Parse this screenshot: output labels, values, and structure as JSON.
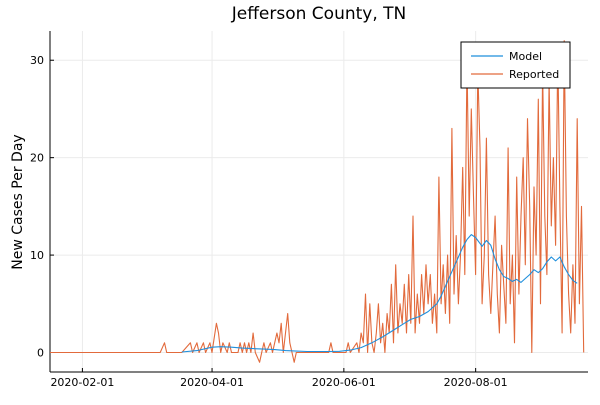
{
  "chart_data": {
    "type": "line",
    "title": "Jefferson County, TN",
    "xlabel": "",
    "ylabel": "New Cases Per Day",
    "x_axis": {
      "type": "date",
      "range": [
        "2020-01-17",
        "2020-09-22"
      ],
      "ticks": [
        "2020-02-01",
        "2020-04-01",
        "2020-06-01",
        "2020-08-01"
      ]
    },
    "y_axis": {
      "range": [
        -2,
        33
      ],
      "ticks": [
        0,
        10,
        20,
        30
      ]
    },
    "grid": true,
    "legend": {
      "placement": "top-right"
    },
    "series": [
      {
        "name": "Model",
        "color": "#1f8fdc",
        "points": [
          [
            "2020-03-18",
            0.05
          ],
          [
            "2020-03-25",
            0.2
          ],
          [
            "2020-04-01",
            0.55
          ],
          [
            "2020-04-05",
            0.6
          ],
          [
            "2020-04-10",
            0.55
          ],
          [
            "2020-04-15",
            0.45
          ],
          [
            "2020-04-20",
            0.4
          ],
          [
            "2020-04-25",
            0.35
          ],
          [
            "2020-04-30",
            0.3
          ],
          [
            "2020-05-05",
            0.2
          ],
          [
            "2020-05-10",
            0.15
          ],
          [
            "2020-05-15",
            0.1
          ],
          [
            "2020-05-20",
            0.1
          ],
          [
            "2020-05-25",
            0.1
          ],
          [
            "2020-05-30",
            0.12
          ],
          [
            "2020-06-04",
            0.25
          ],
          [
            "2020-06-09",
            0.5
          ],
          [
            "2020-06-14",
            1.0
          ],
          [
            "2020-06-19",
            1.6
          ],
          [
            "2020-06-24",
            2.3
          ],
          [
            "2020-06-29",
            3.0
          ],
          [
            "2020-07-02",
            3.4
          ],
          [
            "2020-07-06",
            3.7
          ],
          [
            "2020-07-10",
            4.2
          ],
          [
            "2020-07-14",
            5.0
          ],
          [
            "2020-07-16",
            5.8
          ],
          [
            "2020-07-18",
            6.8
          ],
          [
            "2020-07-20",
            7.8
          ],
          [
            "2020-07-22",
            8.8
          ],
          [
            "2020-07-24",
            9.8
          ],
          [
            "2020-07-26",
            10.8
          ],
          [
            "2020-07-28",
            11.6
          ],
          [
            "2020-07-30",
            12.1
          ],
          [
            "2020-08-01",
            11.8
          ],
          [
            "2020-08-03",
            11.2
          ],
          [
            "2020-08-04",
            10.9
          ],
          [
            "2020-08-06",
            11.5
          ],
          [
            "2020-08-08",
            11.0
          ],
          [
            "2020-08-10",
            9.6
          ],
          [
            "2020-08-12",
            8.5
          ],
          [
            "2020-08-14",
            7.8
          ],
          [
            "2020-08-16",
            7.6
          ],
          [
            "2020-08-18",
            7.3
          ],
          [
            "2020-08-20",
            7.5
          ],
          [
            "2020-08-22",
            7.2
          ],
          [
            "2020-08-24",
            7.6
          ],
          [
            "2020-08-26",
            8.0
          ],
          [
            "2020-08-28",
            8.5
          ],
          [
            "2020-08-30",
            8.2
          ],
          [
            "2020-09-01",
            8.6
          ],
          [
            "2020-09-03",
            9.3
          ],
          [
            "2020-09-05",
            9.8
          ],
          [
            "2020-09-07",
            9.4
          ],
          [
            "2020-09-09",
            9.8
          ],
          [
            "2020-09-11",
            8.8
          ],
          [
            "2020-09-13",
            8.0
          ],
          [
            "2020-09-15",
            7.4
          ],
          [
            "2020-09-17",
            7.1
          ]
        ]
      },
      {
        "name": "Reported",
        "color": "#e26a3c",
        "points": [
          [
            "2020-01-17",
            0
          ],
          [
            "2020-03-08",
            0
          ],
          [
            "2020-03-10",
            1
          ],
          [
            "2020-03-11",
            0
          ],
          [
            "2020-03-18",
            0
          ],
          [
            "2020-03-22",
            1
          ],
          [
            "2020-03-23",
            0
          ],
          [
            "2020-03-25",
            1
          ],
          [
            "2020-03-26",
            0
          ],
          [
            "2020-03-28",
            1
          ],
          [
            "2020-03-29",
            0
          ],
          [
            "2020-03-31",
            1
          ],
          [
            "2020-04-01",
            0
          ],
          [
            "2020-04-03",
            3
          ],
          [
            "2020-04-04",
            2
          ],
          [
            "2020-04-05",
            0
          ],
          [
            "2020-04-06",
            1
          ],
          [
            "2020-04-08",
            0
          ],
          [
            "2020-04-09",
            1
          ],
          [
            "2020-04-10",
            0
          ],
          [
            "2020-04-13",
            0
          ],
          [
            "2020-04-14",
            1
          ],
          [
            "2020-04-15",
            0
          ],
          [
            "2020-04-16",
            1
          ],
          [
            "2020-04-17",
            0
          ],
          [
            "2020-04-18",
            1
          ],
          [
            "2020-04-19",
            0
          ],
          [
            "2020-04-20",
            2
          ],
          [
            "2020-04-21",
            0
          ],
          [
            "2020-04-23",
            -1
          ],
          [
            "2020-04-24",
            0
          ],
          [
            "2020-04-25",
            1
          ],
          [
            "2020-04-26",
            0
          ],
          [
            "2020-04-28",
            1
          ],
          [
            "2020-04-29",
            0
          ],
          [
            "2020-05-01",
            2
          ],
          [
            "2020-05-02",
            1
          ],
          [
            "2020-05-03",
            3
          ],
          [
            "2020-05-04",
            0
          ],
          [
            "2020-05-05",
            2
          ],
          [
            "2020-05-06",
            4
          ],
          [
            "2020-05-07",
            1
          ],
          [
            "2020-05-08",
            0
          ],
          [
            "2020-05-09",
            -1
          ],
          [
            "2020-05-10",
            0
          ],
          [
            "2020-05-25",
            0
          ],
          [
            "2020-05-26",
            1
          ],
          [
            "2020-05-27",
            0
          ],
          [
            "2020-06-02",
            0
          ],
          [
            "2020-06-03",
            1
          ],
          [
            "2020-06-04",
            0
          ],
          [
            "2020-06-07",
            1
          ],
          [
            "2020-06-08",
            0
          ],
          [
            "2020-06-09",
            2
          ],
          [
            "2020-06-10",
            1
          ],
          [
            "2020-06-11",
            6
          ],
          [
            "2020-06-12",
            0
          ],
          [
            "2020-06-13",
            5
          ],
          [
            "2020-06-14",
            1
          ],
          [
            "2020-06-15",
            0
          ],
          [
            "2020-06-16",
            2
          ],
          [
            "2020-06-17",
            5
          ],
          [
            "2020-06-18",
            1
          ],
          [
            "2020-06-19",
            3
          ],
          [
            "2020-06-20",
            0
          ],
          [
            "2020-06-21",
            4
          ],
          [
            "2020-06-22",
            2
          ],
          [
            "2020-06-23",
            7
          ],
          [
            "2020-06-24",
            1
          ],
          [
            "2020-06-25",
            9
          ],
          [
            "2020-06-26",
            2
          ],
          [
            "2020-06-27",
            5
          ],
          [
            "2020-06-28",
            3
          ],
          [
            "2020-06-29",
            7
          ],
          [
            "2020-06-30",
            2
          ],
          [
            "2020-07-01",
            8
          ],
          [
            "2020-07-02",
            3
          ],
          [
            "2020-07-03",
            14
          ],
          [
            "2020-07-04",
            2
          ],
          [
            "2020-07-05",
            6
          ],
          [
            "2020-07-06",
            3
          ],
          [
            "2020-07-07",
            8
          ],
          [
            "2020-07-08",
            4
          ],
          [
            "2020-07-09",
            9
          ],
          [
            "2020-07-10",
            5
          ],
          [
            "2020-07-11",
            8
          ],
          [
            "2020-07-12",
            3
          ],
          [
            "2020-07-13",
            6
          ],
          [
            "2020-07-14",
            2
          ],
          [
            "2020-07-15",
            18
          ],
          [
            "2020-07-16",
            5
          ],
          [
            "2020-07-17",
            9
          ],
          [
            "2020-07-18",
            4
          ],
          [
            "2020-07-19",
            10
          ],
          [
            "2020-07-20",
            3
          ],
          [
            "2020-07-21",
            23
          ],
          [
            "2020-07-22",
            6
          ],
          [
            "2020-07-23",
            12
          ],
          [
            "2020-07-24",
            5
          ],
          [
            "2020-07-25",
            10
          ],
          [
            "2020-07-26",
            19
          ],
          [
            "2020-07-27",
            8
          ],
          [
            "2020-07-28",
            30
          ],
          [
            "2020-07-29",
            14
          ],
          [
            "2020-07-30",
            25
          ],
          [
            "2020-07-31",
            16
          ],
          [
            "2020-08-01",
            8
          ],
          [
            "2020-08-02",
            29
          ],
          [
            "2020-08-03",
            21
          ],
          [
            "2020-08-04",
            5
          ],
          [
            "2020-08-05",
            10
          ],
          [
            "2020-08-06",
            22
          ],
          [
            "2020-08-07",
            8
          ],
          [
            "2020-08-08",
            4
          ],
          [
            "2020-08-09",
            9
          ],
          [
            "2020-08-10",
            14
          ],
          [
            "2020-08-11",
            6
          ],
          [
            "2020-08-12",
            2
          ],
          [
            "2020-08-13",
            11
          ],
          [
            "2020-08-14",
            7
          ],
          [
            "2020-08-15",
            3
          ],
          [
            "2020-08-16",
            21
          ],
          [
            "2020-08-17",
            5
          ],
          [
            "2020-08-18",
            10
          ],
          [
            "2020-08-19",
            1
          ],
          [
            "2020-08-20",
            18
          ],
          [
            "2020-08-21",
            6
          ],
          [
            "2020-08-22",
            14
          ],
          [
            "2020-08-23",
            20
          ],
          [
            "2020-08-24",
            9
          ],
          [
            "2020-08-25",
            24
          ],
          [
            "2020-08-26",
            15
          ],
          [
            "2020-08-27",
            0
          ],
          [
            "2020-08-28",
            17
          ],
          [
            "2020-08-29",
            10
          ],
          [
            "2020-08-30",
            26
          ],
          [
            "2020-08-31",
            5
          ],
          [
            "2020-09-01",
            29
          ],
          [
            "2020-09-02",
            14
          ],
          [
            "2020-09-03",
            8
          ],
          [
            "2020-09-04",
            28
          ],
          [
            "2020-09-05",
            13
          ],
          [
            "2020-09-06",
            20
          ],
          [
            "2020-09-07",
            11
          ],
          [
            "2020-09-08",
            31
          ],
          [
            "2020-09-09",
            15
          ],
          [
            "2020-09-10",
            2
          ],
          [
            "2020-09-11",
            32
          ],
          [
            "2020-09-12",
            14
          ],
          [
            "2020-09-13",
            6
          ],
          [
            "2020-09-14",
            2
          ],
          [
            "2020-09-15",
            9
          ],
          [
            "2020-09-16",
            3
          ],
          [
            "2020-09-17",
            24
          ],
          [
            "2020-09-18",
            5
          ],
          [
            "2020-09-19",
            15
          ],
          [
            "2020-09-20",
            0
          ]
        ]
      }
    ]
  }
}
